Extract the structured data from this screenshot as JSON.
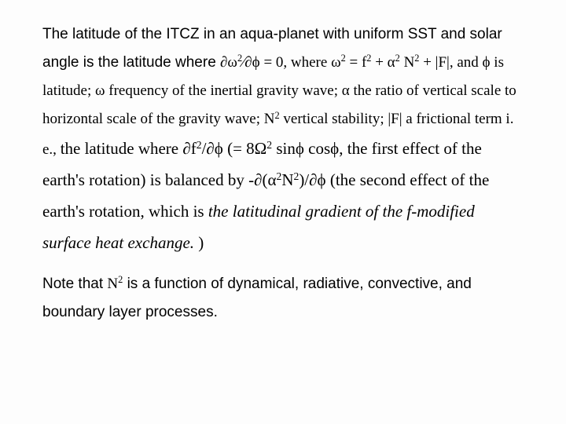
{
  "p1a": "The latitude of the ITCZ in an aqua-planet with uniform SST and solar angle is the latitude where",
  "eq_pre": " ∂ω",
  "eq_sup2a": "2",
  "eq_mid1": "⁄∂ϕ = 0, where  ω",
  "eq_sup2b": "2",
  "eq_mid2": " = f",
  "eq_sup2c": "2",
  "eq_mid3": " + α",
  "eq_sup2d": "2",
  "eq_N": " N",
  "eq_sup2e": "2",
  "eq_tail": " + |F|, and ϕ is latitude;",
  "p2a": "ω frequency of the inertial gravity wave; α the ratio of vertical scale to horizontal scale of the gravity wave; ",
  "p2_N": "N",
  "p2_sup": "2",
  "p2b": " vertical stability;",
  "p3a": "|F| a frictional term i. e., ",
  "p3b": "the latitude where ∂f",
  "p3_sup1": "2",
  "p3c": "/∂ϕ (= 8Ω",
  "p3_sup2": "2",
  "p3d": " sinϕ cosϕ, the first effect of the earth's rotation) is balanced by -∂(α",
  "p3_sup3": "2",
  "p3e": "N",
  "p3_sup4": "2",
  "p3f": ")/∂ϕ (the second effect of the earth's rotation, which is ",
  "p3_ital": "the latitudinal gradient of the f-modified surface heat exchange.",
  "p3g": " )",
  "p4a": "Note that ",
  "p4_N": "N",
  "p4_sup": "2",
  "p4b": " is a function of dynamical, radiative, convective, and boundary layer processes."
}
